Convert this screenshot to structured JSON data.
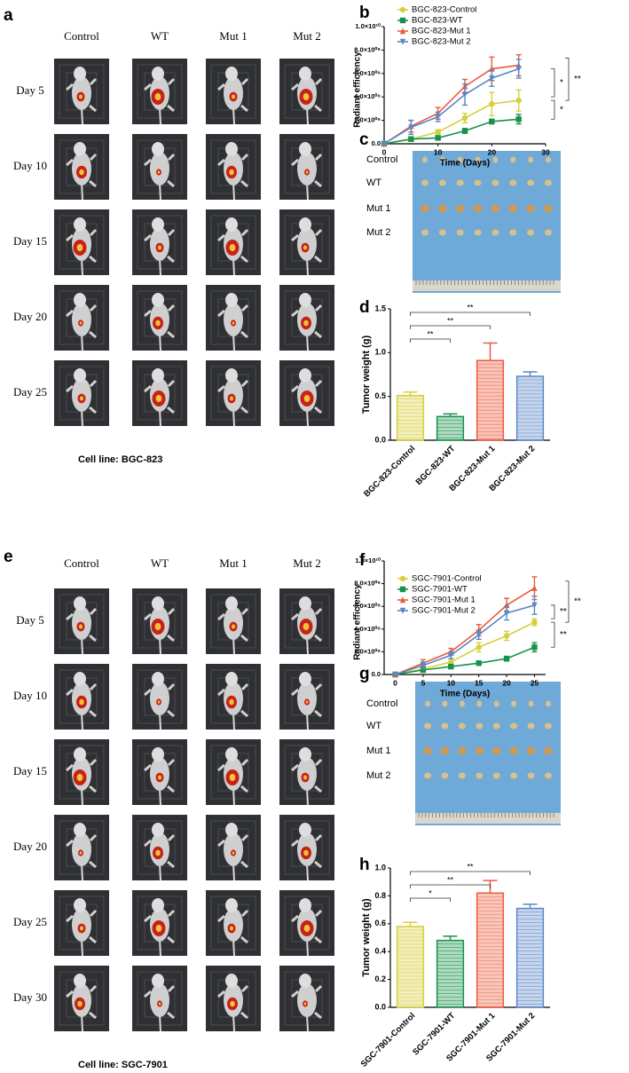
{
  "panel_a": {
    "letter": "a",
    "columns": [
      "Control",
      "WT",
      "Mut 1",
      "Mut 2"
    ],
    "rows": [
      "Day 5",
      "Day 10",
      "Day 15",
      "Day 20",
      "Day 25"
    ],
    "caption": "Cell line: BGC-823"
  },
  "panel_c": {
    "letter": "c",
    "labels": [
      "Control",
      "WT",
      "Mut 1",
      "Mut 2"
    ]
  },
  "panel_e": {
    "letter": "e",
    "columns": [
      "Control",
      "WT",
      "Mut 1",
      "Mut 2"
    ],
    "rows": [
      "Day 5",
      "Day 10",
      "Day 15",
      "Day 20",
      "Day 25",
      "Day 30"
    ],
    "caption": "Cell line: SGC-7901"
  },
  "panel_g": {
    "letter": "g",
    "labels": [
      "Control",
      "WT",
      "Mut 1",
      "Mut 2"
    ]
  },
  "chart_data": [
    {
      "type": "line",
      "letter": "b",
      "x_label": "Time (Days)",
      "y_label": "Radiant efficiency",
      "x": [
        0,
        5,
        10,
        15,
        20,
        25
      ],
      "xlim": [
        0,
        30
      ],
      "xticks": [
        0,
        10,
        20,
        30
      ],
      "ylim": [
        0,
        10000000000
      ],
      "yticks": [
        {
          "value": 0,
          "label": "0.0"
        },
        {
          "value": 2000000000,
          "label": "2.0×10⁰⁹"
        },
        {
          "value": 4000000000,
          "label": "4.0×10⁰⁹"
        },
        {
          "value": 6000000000,
          "label": "6.0×10⁰⁹"
        },
        {
          "value": 8000000000,
          "label": "8.0×10⁰⁹"
        },
        {
          "value": 10000000000,
          "label": "1.0×10¹⁰"
        }
      ],
      "series": [
        {
          "name": "BGC-823-Control",
          "color": "#d6cf3c",
          "values": [
            0,
            400000000,
            1000000000,
            2200000000,
            3400000000,
            3700000000
          ],
          "errors": [
            0,
            200000000,
            200000000,
            400000000,
            1000000000,
            900000000
          ]
        },
        {
          "name": "BGC-823-WT",
          "color": "#17924a",
          "values": [
            0,
            400000000,
            500000000,
            1100000000,
            1900000000,
            2100000000
          ],
          "errors": [
            0,
            100000000,
            100000000,
            200000000,
            200000000,
            400000000
          ]
        },
        {
          "name": "BGC-823-Mut 1",
          "color": "#ec5a3d",
          "values": [
            0,
            1500000000,
            2600000000,
            4900000000,
            6400000000,
            6700000000
          ],
          "errors": [
            0,
            500000000,
            500000000,
            600000000,
            1000000000,
            900000000
          ]
        },
        {
          "name": "BGC-823-Mut 2",
          "color": "#5b87c5",
          "values": [
            0,
            1400000000,
            2300000000,
            4200000000,
            5600000000,
            6400000000
          ],
          "errors": [
            0,
            600000000,
            400000000,
            900000000,
            700000000,
            800000000
          ]
        }
      ],
      "annotations": [
        "**",
        "*",
        "*"
      ]
    },
    {
      "type": "bar",
      "letter": "d",
      "y_label": "Tumor weight (g)",
      "categories": [
        "BGC-823-Control",
        "BGC-823-WT",
        "BGC-823-Mut 1",
        "BGC-823-Mut 2"
      ],
      "values": [
        0.51,
        0.27,
        0.91,
        0.73
      ],
      "errors": [
        0.04,
        0.03,
        0.2,
        0.05
      ],
      "colors": [
        "#d6cf3c",
        "#17924a",
        "#ec5a3d",
        "#5b87c5"
      ],
      "ylim": [
        0,
        1.5
      ],
      "yticks": [
        {
          "value": 0,
          "label": "0.0"
        },
        0.5,
        {
          "value": 1,
          "label": "1.0"
        },
        1.5
      ],
      "annotations": [
        "**",
        "**",
        "**"
      ]
    },
    {
      "type": "line",
      "letter": "f",
      "x_label": "Time (Days)",
      "y_label": "Radiant efficiency",
      "x": [
        0,
        5,
        10,
        15,
        20,
        25
      ],
      "xlim": [
        -2,
        27
      ],
      "xticks": [
        0,
        5,
        10,
        15,
        20,
        25
      ],
      "ylim": [
        0,
        10000000000
      ],
      "yticks": [
        {
          "value": 0,
          "label": "0.0"
        },
        {
          "value": 2000000000,
          "label": "2.0×10⁰⁹"
        },
        {
          "value": 4000000000,
          "label": "4.0×10⁰⁹"
        },
        {
          "value": 6000000000,
          "label": "6.0×10⁰⁹"
        },
        {
          "value": 8000000000,
          "label": "8.0×10⁰⁹"
        },
        {
          "value": 10000000000,
          "label": "1.0×10¹⁰"
        }
      ],
      "series": [
        {
          "name": "SGC-7901-Control",
          "color": "#d6cf3c",
          "values": [
            0,
            500000000,
            1100000000,
            2400000000,
            3400000000,
            4600000000
          ],
          "errors": [
            0,
            200000000,
            300000000,
            400000000,
            400000000,
            300000000
          ]
        },
        {
          "name": "SGC-7901-WT",
          "color": "#17924a",
          "values": [
            0,
            400000000,
            700000000,
            1000000000,
            1400000000,
            2400000000
          ],
          "errors": [
            0,
            200000000,
            100000000,
            100000000,
            200000000,
            400000000
          ]
        },
        {
          "name": "SGC-7901-Mut 1",
          "color": "#ec5a3d",
          "values": [
            0,
            1000000000,
            2000000000,
            3900000000,
            6100000000,
            7600000000
          ],
          "errors": [
            0,
            300000000,
            300000000,
            500000000,
            600000000,
            1000000000
          ]
        },
        {
          "name": "SGC-7901-Mut 2",
          "color": "#5b87c5",
          "values": [
            0,
            800000000,
            1700000000,
            3500000000,
            5400000000,
            6100000000
          ],
          "errors": [
            0,
            300000000,
            300000000,
            400000000,
            600000000,
            800000000
          ]
        }
      ],
      "annotations": [
        "**",
        "**",
        "**"
      ]
    },
    {
      "type": "bar",
      "letter": "h",
      "y_label": "Tumor weight (g)",
      "categories": [
        "SGC-7901-Control",
        "SGC-7901-WT",
        "SGC-7901-Mut 1",
        "SGC-7901-Mut 2"
      ],
      "values": [
        0.58,
        0.48,
        0.82,
        0.71
      ],
      "errors": [
        0.03,
        0.03,
        0.09,
        0.03
      ],
      "colors": [
        "#d6cf3c",
        "#17924a",
        "#ec5a3d",
        "#5b87c5"
      ],
      "ylim": [
        0,
        1
      ],
      "yticks": [
        {
          "value": 0,
          "label": "0.0"
        },
        0.2,
        0.4,
        0.6,
        0.8,
        {
          "value": 1,
          "label": "1.0"
        }
      ],
      "annotations": [
        "*",
        "**",
        "**"
      ]
    }
  ]
}
